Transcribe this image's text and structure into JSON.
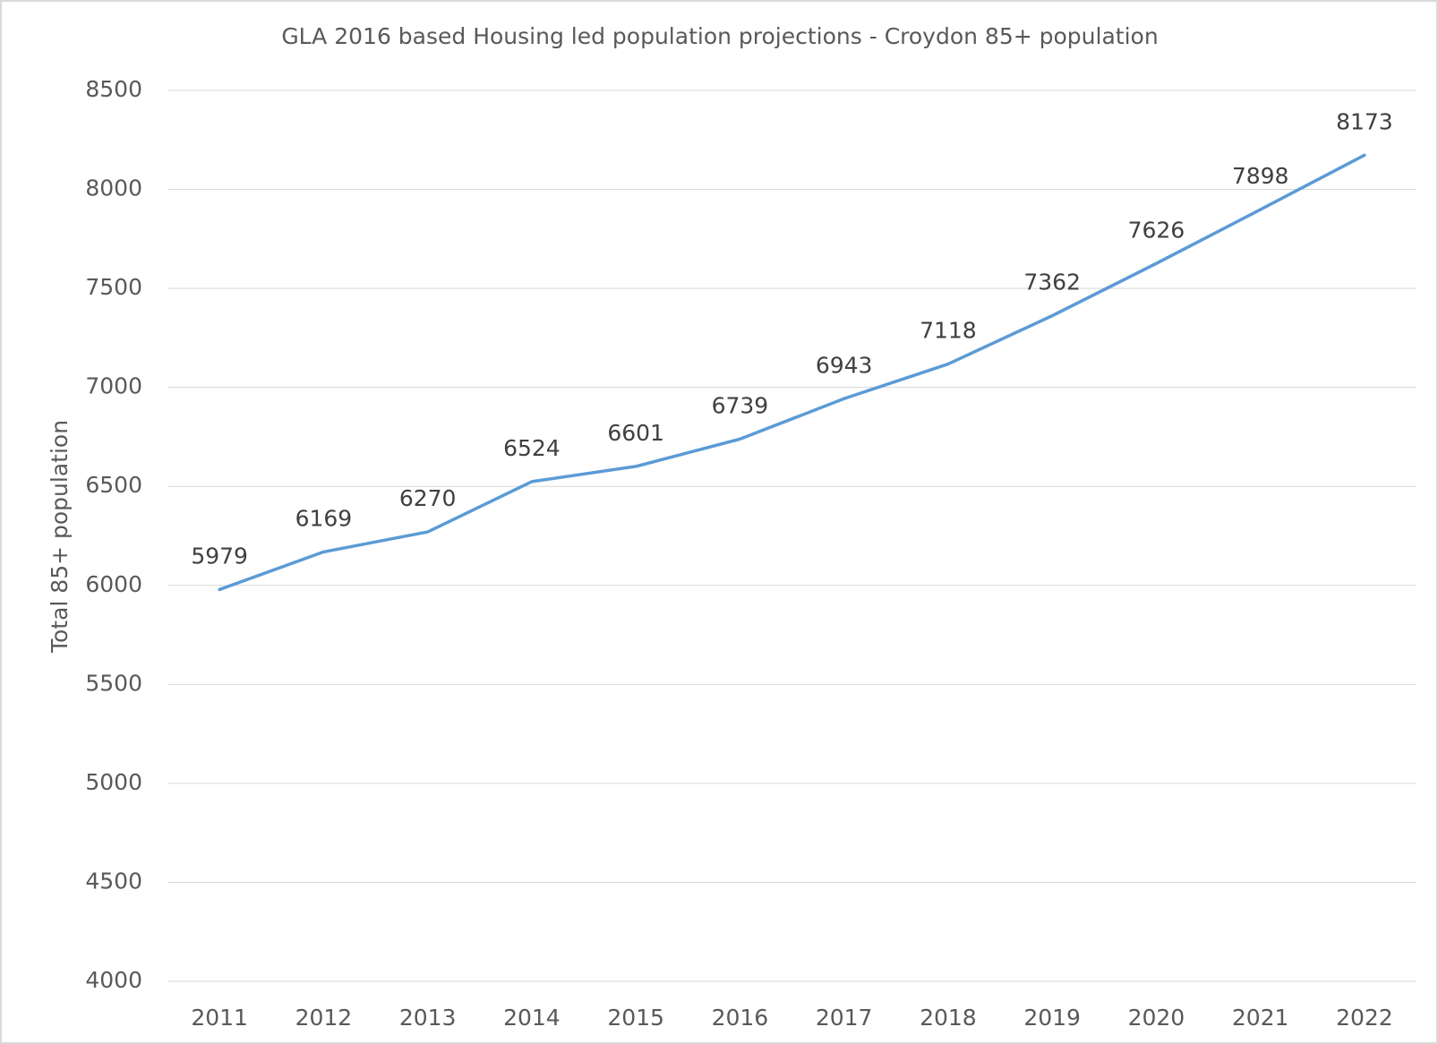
{
  "chart_data": {
    "type": "line",
    "title": "GLA 2016 based Housing led population projections - Croydon 85+ population",
    "ylabel": "Total 85+ population",
    "categories": [
      "2011",
      "2012",
      "2013",
      "2014",
      "2015",
      "2016",
      "2017",
      "2018",
      "2019",
      "2020",
      "2021",
      "2022"
    ],
    "values": [
      5979,
      6169,
      6270,
      6524,
      6601,
      6739,
      6943,
      7118,
      7362,
      7626,
      7898,
      8173
    ],
    "color": "#5b9bd5",
    "ylim": [
      4000,
      8500
    ],
    "yticks": [
      4000,
      4500,
      5000,
      5500,
      6000,
      6500,
      7000,
      7500,
      8000,
      8500
    ],
    "grid": true,
    "data_labels": true
  }
}
